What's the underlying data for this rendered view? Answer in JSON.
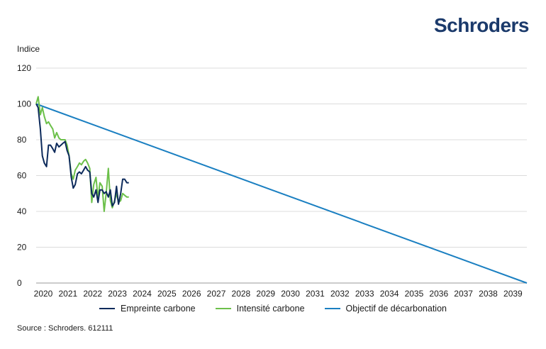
{
  "brand": {
    "name": "Schroders",
    "color": "#1b3a6b"
  },
  "chart_data": {
    "type": "line",
    "ylabel": "Indice",
    "ylim": [
      0,
      120
    ],
    "yticks": [
      0,
      20,
      40,
      60,
      80,
      100,
      120
    ],
    "xlim": [
      2020,
      2039.85
    ],
    "xticks": [
      "2020",
      "2021",
      "2022",
      "2023",
      "2024",
      "2025",
      "2026",
      "2027",
      "2028",
      "2029",
      "2030",
      "2031",
      "2032",
      "2033",
      "2034",
      "2035",
      "2036",
      "2037",
      "2038",
      "2039"
    ],
    "grid": "horizontal",
    "legend_position": "bottom",
    "series": [
      {
        "name": "Empreinte carbone",
        "color": "#0c2a5b",
        "x": [
          2020.0,
          2020.08,
          2020.17,
          2020.25,
          2020.33,
          2020.42,
          2020.5,
          2020.58,
          2020.67,
          2020.75,
          2020.83,
          2020.92,
          2021.0,
          2021.08,
          2021.17,
          2021.25,
          2021.33,
          2021.42,
          2021.5,
          2021.58,
          2021.67,
          2021.75,
          2021.83,
          2021.92,
          2022.0,
          2022.08,
          2022.17,
          2022.25,
          2022.33,
          2022.42,
          2022.5,
          2022.58,
          2022.67,
          2022.75,
          2022.83,
          2022.92,
          2023.0,
          2023.08,
          2023.17,
          2023.25,
          2023.33,
          2023.42,
          2023.5,
          2023.58,
          2023.67,
          2023.75
        ],
        "values": [
          100,
          98,
          86,
          71,
          67,
          65,
          77,
          77,
          75,
          73,
          78,
          76,
          77,
          78,
          79,
          74,
          71,
          59,
          53,
          55,
          61,
          62,
          61,
          63,
          65,
          63,
          62,
          50,
          48,
          52,
          45,
          52,
          52,
          50,
          51,
          48,
          52,
          43,
          45,
          54,
          44,
          50,
          58,
          58,
          56,
          56
        ]
      },
      {
        "name": "Intensité carbone",
        "color": "#6cc04a",
        "x": [
          2020.0,
          2020.08,
          2020.17,
          2020.25,
          2020.33,
          2020.42,
          2020.5,
          2020.58,
          2020.67,
          2020.75,
          2020.83,
          2020.92,
          2021.0,
          2021.08,
          2021.17,
          2021.25,
          2021.33,
          2021.42,
          2021.5,
          2021.58,
          2021.67,
          2021.75,
          2021.83,
          2021.92,
          2022.0,
          2022.08,
          2022.17,
          2022.25,
          2022.33,
          2022.42,
          2022.5,
          2022.58,
          2022.67,
          2022.75,
          2022.83,
          2022.92,
          2023.0,
          2023.08,
          2023.17,
          2023.25,
          2023.33,
          2023.42,
          2023.5,
          2023.58,
          2023.67,
          2023.75
        ],
        "values": [
          100,
          104,
          94,
          98,
          93,
          89,
          90,
          88,
          86,
          81,
          84,
          81,
          80,
          80,
          80,
          77,
          71,
          61,
          58,
          63,
          65,
          67,
          66,
          68,
          69,
          67,
          64,
          45,
          55,
          59,
          47,
          56,
          54,
          40,
          50,
          64,
          46,
          42,
          46,
          50,
          45,
          46,
          50,
          49,
          48,
          48
        ]
      },
      {
        "name": "Objectif de décarbonation",
        "color": "#1a7fc1",
        "x": [
          2020.0,
          2039.85
        ],
        "values": [
          100,
          0
        ]
      }
    ]
  },
  "source": "Source : Schroders. 612111"
}
